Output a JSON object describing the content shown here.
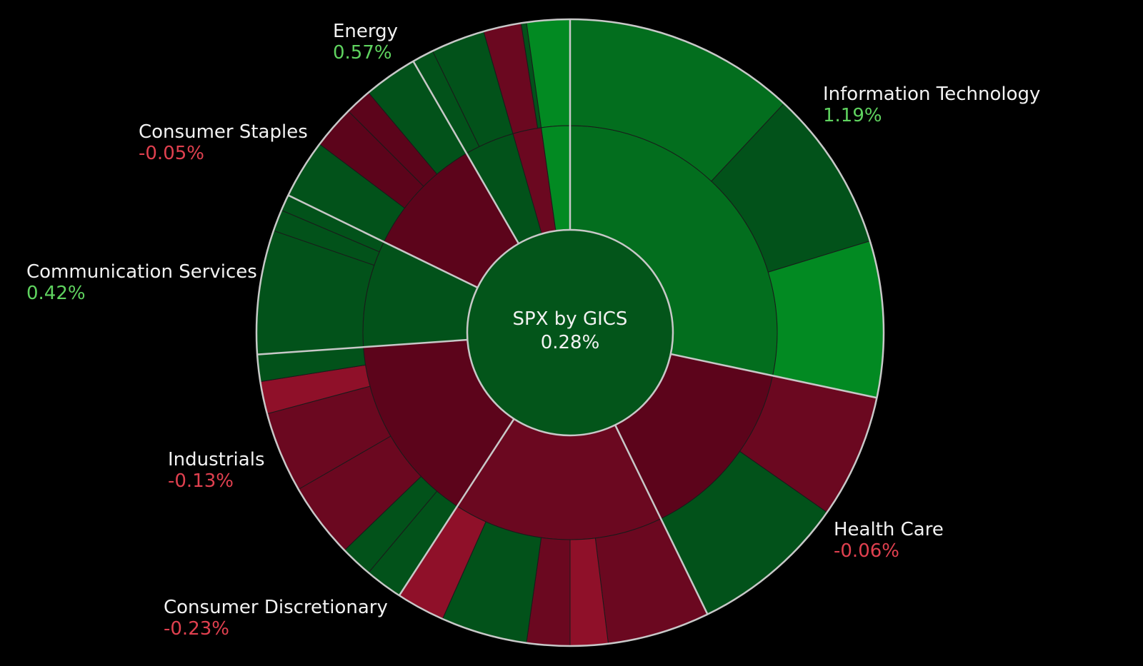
{
  "colors": {
    "up_strong": "#028a22",
    "up": "#036e1e",
    "up_dark": "#02521a",
    "down": "#6b0820",
    "down_dark": "#5c041b",
    "down_bright": "#8f1029",
    "label_up": "#5fd35f",
    "label_down": "#e0404f"
  },
  "chart_data": {
    "type": "sunburst",
    "title": "SPX by GICS",
    "total_change": "0.28%",
    "sectors": [
      {
        "name": "Information Technology",
        "change": "1.19%",
        "direction": "up"
      },
      {
        "name": "Health Care",
        "change": "-0.06%",
        "direction": "down"
      },
      {
        "name": "Consumer Discretionary",
        "change": "-0.23%",
        "direction": "down"
      },
      {
        "name": "Industrials",
        "change": "-0.13%",
        "direction": "down"
      },
      {
        "name": "Communication Services",
        "change": "0.42%",
        "direction": "up"
      },
      {
        "name": "Consumer Staples",
        "change": "-0.05%",
        "direction": "down"
      },
      {
        "name": "Energy",
        "change": "0.57%",
        "direction": "up"
      }
    ]
  }
}
